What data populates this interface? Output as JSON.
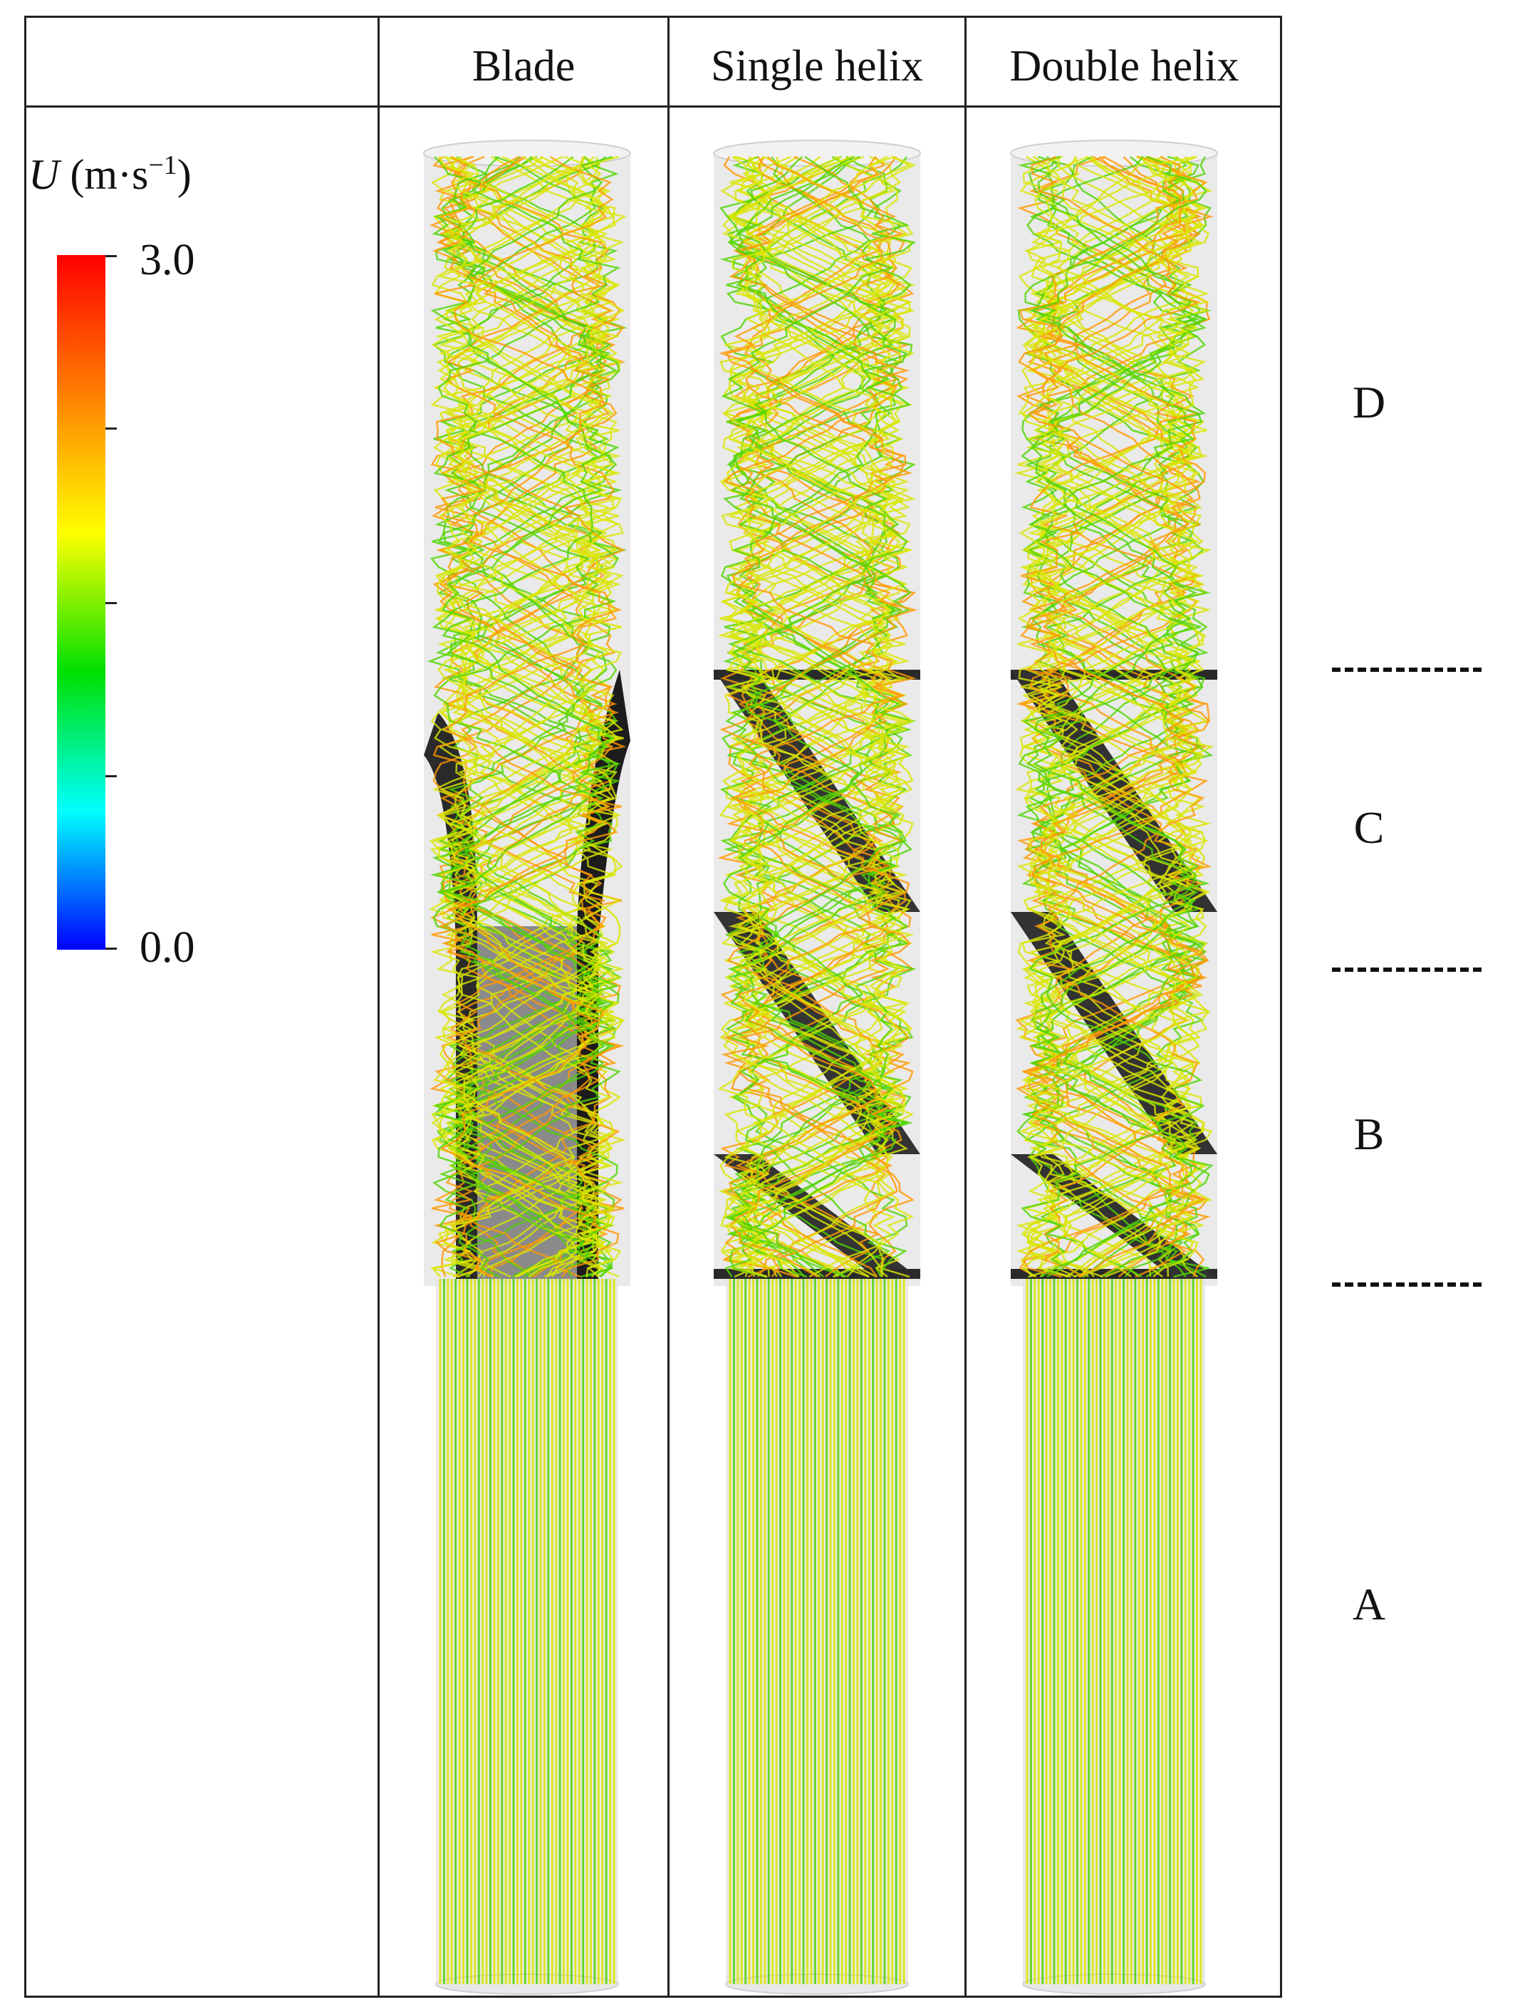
{
  "columns": [
    "Blade",
    "Single helix",
    "Double helix"
  ],
  "legend": {
    "symbol": "U",
    "unit": "(m·s",
    "unit_exp": "−1",
    "unit_close": ")",
    "max_label": "3.0",
    "min_label": "0.0",
    "gradient_colors": [
      "#ff0000",
      "#ff8000",
      "#ffff00",
      "#00e000",
      "#00ffff",
      "#0000ff"
    ]
  },
  "regions": [
    "D",
    "C",
    "B",
    "A"
  ],
  "colors": {
    "tube": "#e3e3e3",
    "insert": "#2a2a2a",
    "stream_yellow": "#d9e600",
    "stream_green": "#4fd400",
    "stream_orange": "#ff9900"
  }
}
